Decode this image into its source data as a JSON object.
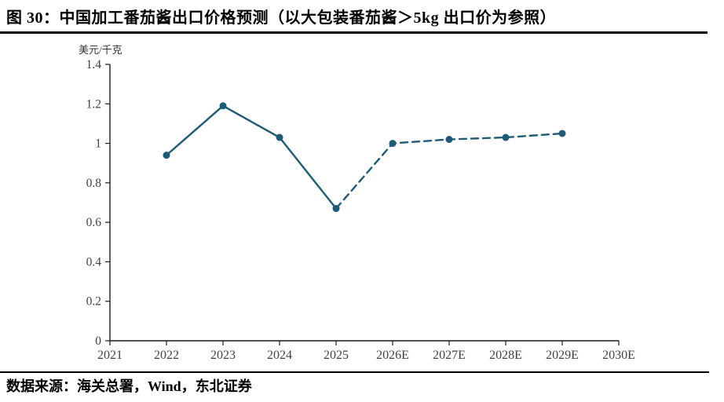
{
  "figure": {
    "title": "图 30：中国加工番茄酱出口价格预测（以大包装番茄酱＞5kg 出口价为参照）",
    "source": "数据来源：海关总署，Wind，东北证券"
  },
  "chart_data": {
    "type": "line",
    "title": "中国加工番茄酱出口价格预测（以大包装番茄酱＞5kg 出口价为参照）",
    "ylabel": "美元/千克",
    "xlabel": "",
    "categories": [
      "2021",
      "2022",
      "2023",
      "2024",
      "2025",
      "2026E",
      "2027E",
      "2028E",
      "2029E",
      "2030E"
    ],
    "series": [
      {
        "name": "solid",
        "style": "solid",
        "x": [
          "2022",
          "2023",
          "2024",
          "2025"
        ],
        "values": [
          0.94,
          1.19,
          1.03,
          0.67
        ]
      },
      {
        "name": "dashed",
        "style": "dashed",
        "x": [
          "2025",
          "2026E",
          "2027E",
          "2028E",
          "2029E"
        ],
        "values": [
          0.67,
          1.0,
          1.02,
          1.03,
          1.05
        ]
      }
    ],
    "ylim": [
      0,
      1.4
    ],
    "ytick_labels": [
      "0",
      "0.2",
      "0.4",
      "0.6",
      "0.8",
      "1",
      "1.2",
      "1.4"
    ],
    "grid": false,
    "legend": "none",
    "line_color": "#1e5b78",
    "axis_color": "#1a1a1a",
    "tick_label_color": "#404040"
  }
}
